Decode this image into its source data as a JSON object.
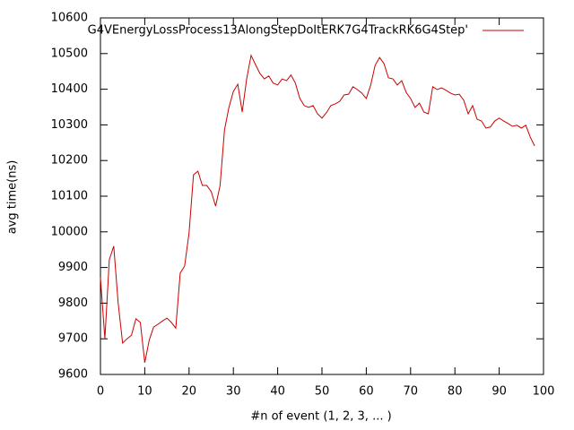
{
  "chart_data": {
    "type": "line",
    "xlabel": "#n of event (1, 2, 3, ... )",
    "ylabel": "avg time(ns)",
    "xlim": [
      0,
      100
    ],
    "ylim": [
      9600,
      10600
    ],
    "xticks": [
      0,
      10,
      20,
      30,
      40,
      50,
      60,
      70,
      80,
      90,
      100
    ],
    "yticks": [
      9600,
      9700,
      9800,
      9900,
      10000,
      10100,
      10200,
      10300,
      10400,
      10500,
      10600
    ],
    "legend": "top-right",
    "x": [
      0,
      1,
      2,
      3,
      4,
      5,
      6,
      7,
      8,
      9,
      10,
      11,
      12,
      13,
      14,
      15,
      16,
      17,
      18,
      19,
      20,
      21,
      22,
      23,
      24,
      25,
      26,
      27,
      28,
      29,
      30,
      31,
      32,
      33,
      34,
      35,
      36,
      37,
      38,
      39,
      40,
      41,
      42,
      43,
      44,
      45,
      46,
      47,
      48,
      49,
      50,
      51,
      52,
      53,
      54,
      55,
      56,
      57,
      58,
      59,
      60,
      61,
      62,
      63,
      64,
      65,
      66,
      67,
      68,
      69,
      70,
      71,
      72,
      73,
      74,
      75,
      76,
      77,
      78,
      79,
      80,
      81,
      82,
      83,
      84,
      85,
      86,
      87,
      88,
      89,
      90,
      91,
      92,
      93,
      94,
      95,
      96,
      97,
      98
    ],
    "series": [
      {
        "name": "G4VEnergyLossProcess13AlongStepDoItERK7G4TrackRK6G4Step'",
        "color": "#cc0000",
        "values": [
          9871,
          9700,
          9922,
          9960,
          9800,
          9688,
          9700,
          9710,
          9756,
          9746,
          9633,
          9696,
          9733,
          9741,
          9750,
          9758,
          9746,
          9730,
          9884,
          9904,
          9997,
          10160,
          10170,
          10130,
          10130,
          10113,
          10072,
          10130,
          10286,
          10349,
          10394,
          10414,
          10336,
          10429,
          10495,
          10469,
          10444,
          10429,
          10437,
          10417,
          10412,
          10429,
          10424,
          10440,
          10417,
          10374,
          10354,
          10349,
          10354,
          10331,
          10319,
          10334,
          10354,
          10359,
          10366,
          10384,
          10386,
          10407,
          10399,
          10389,
          10374,
          10412,
          10467,
          10489,
          10472,
          10432,
          10429,
          10412,
          10424,
          10391,
          10374,
          10349,
          10361,
          10336,
          10331,
          10407,
          10399,
          10404,
          10397,
          10389,
          10384,
          10386,
          10369,
          10331,
          10354,
          10316,
          10311,
          10291,
          10294,
          10311,
          10319,
          10311,
          10304,
          10296,
          10299,
          10291,
          10299,
          10266,
          10241
        ]
      }
    ]
  }
}
